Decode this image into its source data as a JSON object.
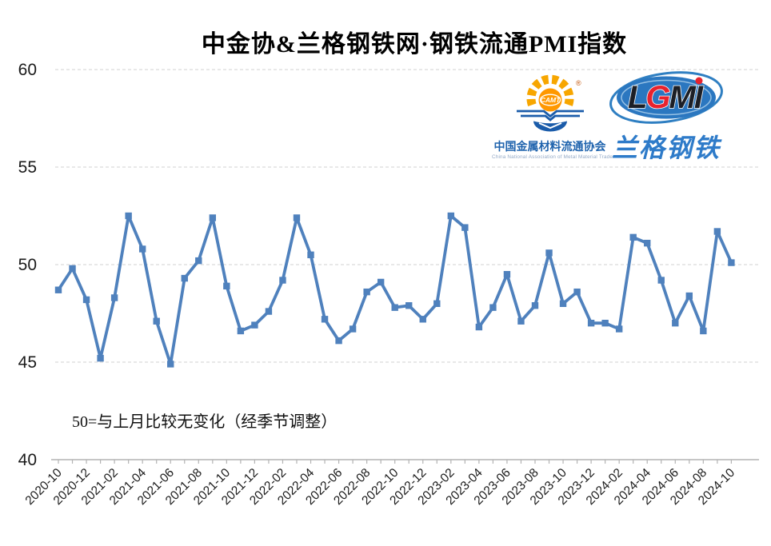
{
  "title": "中金协&兰格钢铁网·钢铁流通PMI指数",
  "annotation": "50=与上月比较无变化（经季节调整）",
  "logos": {
    "camt": {
      "acronym": "CAMT",
      "registered": "®",
      "name_cn": "中国金属材料流通协会",
      "name_en": "China National Association of Metal Material Trade"
    },
    "lgmi": {
      "letters": [
        "L",
        "G",
        "M",
        "I"
      ],
      "name_cn": "兰格钢铁"
    }
  },
  "colors": {
    "series": "#4f81bd",
    "gridline": "#d9d9d9",
    "axis": "#b3b3b3",
    "text": "#1a1a1a",
    "camt_orange": "#f7a600",
    "camt_blue": "#1b5caa",
    "lgmi_body_blue": "#2b77c0",
    "lgmi_red": "#e8232e",
    "lgmi_dark": "#1c1f26"
  },
  "chart_data": {
    "type": "line",
    "title": "中金协&兰格钢铁网·钢铁流通PMI指数",
    "series_name": "钢铁流通PMI指数",
    "baseline_note": "50=与上月比较无变化（经季节调整）",
    "x": [
      "2020-10",
      "2020-11",
      "2020-12",
      "2021-01",
      "2021-02",
      "2021-03",
      "2021-04",
      "2021-05",
      "2021-06",
      "2021-07",
      "2021-08",
      "2021-09",
      "2021-10",
      "2021-11",
      "2021-12",
      "2022-01",
      "2022-02",
      "2022-03",
      "2022-04",
      "2022-05",
      "2022-06",
      "2022-07",
      "2022-08",
      "2022-09",
      "2022-10",
      "2022-11",
      "2022-12",
      "2023-01",
      "2023-02",
      "2023-03",
      "2023-04",
      "2023-05",
      "2023-06",
      "2023-07",
      "2023-08",
      "2023-09",
      "2023-10",
      "2023-11",
      "2023-12",
      "2024-01",
      "2024-02",
      "2024-03",
      "2024-04",
      "2024-05",
      "2024-06",
      "2024-07",
      "2024-08",
      "2024-09",
      "2024-10"
    ],
    "values": [
      48.7,
      49.8,
      48.2,
      45.2,
      48.3,
      52.5,
      50.8,
      47.1,
      44.9,
      49.3,
      50.2,
      52.4,
      48.9,
      46.6,
      46.9,
      47.6,
      49.2,
      52.4,
      50.5,
      47.2,
      46.1,
      46.7,
      48.6,
      49.1,
      47.8,
      47.9,
      47.2,
      48.0,
      52.5,
      51.9,
      46.8,
      47.8,
      49.5,
      47.1,
      47.9,
      50.6,
      48.0,
      48.6,
      47.0,
      47.0,
      46.7,
      51.4,
      51.1,
      49.2,
      47.0,
      48.4,
      46.6,
      51.7,
      50.1
    ],
    "x_tick_labels": [
      "2020-10",
      "2020-12",
      "2021-02",
      "2021-04",
      "2021-06",
      "2021-08",
      "2021-10",
      "2021-12",
      "2022-02",
      "2022-04",
      "2022-06",
      "2022-08",
      "2022-10",
      "2022-12",
      "2023-02",
      "2023-04",
      "2023-06",
      "2023-08",
      "2023-10",
      "2023-12",
      "2024-02",
      "2024-04",
      "2024-06",
      "2024-08",
      "2024-10"
    ],
    "y_ticks": [
      40,
      45,
      50,
      55,
      60
    ],
    "ylim": [
      40,
      60
    ],
    "grid": "horizontal-dashed",
    "legend": "none",
    "marker": "square",
    "line_color": "#4f81bd"
  }
}
